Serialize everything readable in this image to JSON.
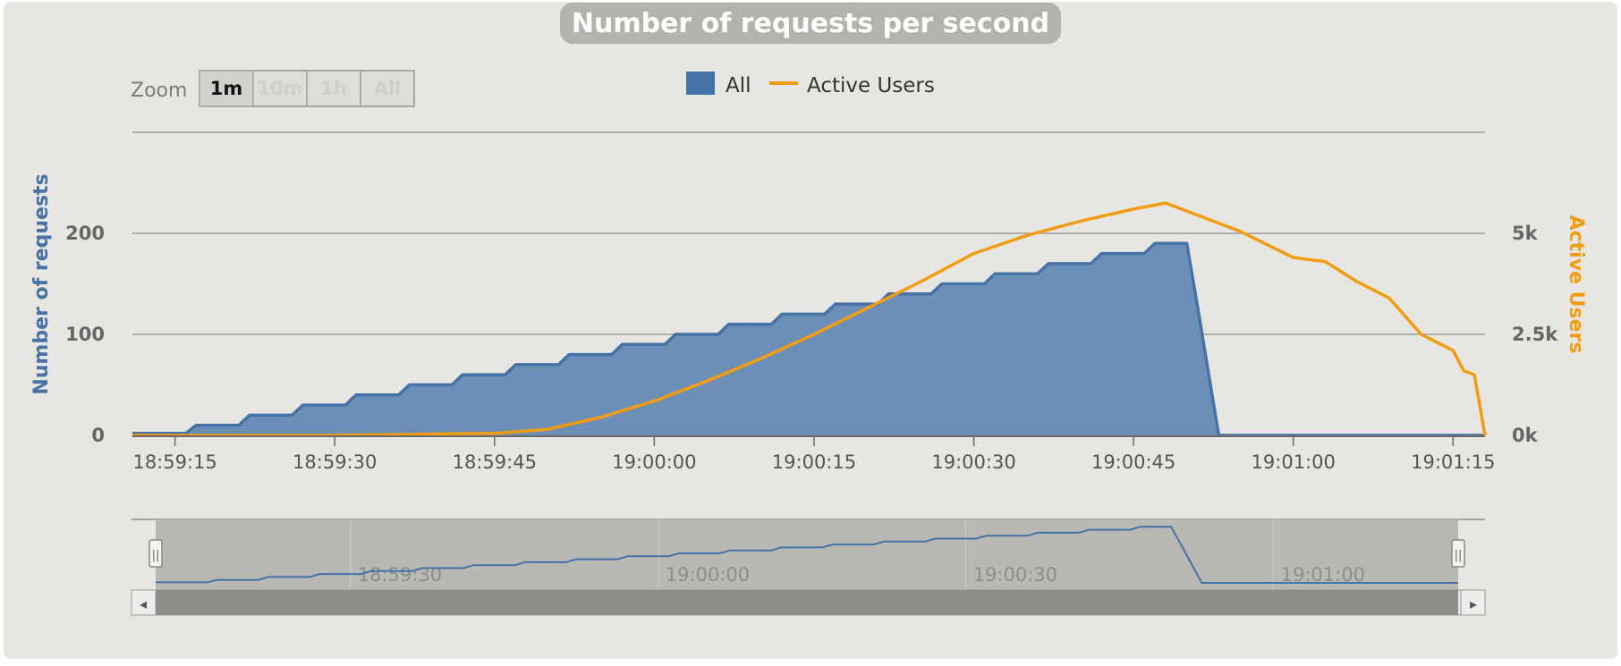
{
  "title": "Number of requests per second",
  "zoom": {
    "label": "Zoom",
    "buttons": [
      "1m",
      "10m",
      "1h",
      "All"
    ],
    "active": "1m"
  },
  "legend": {
    "items": [
      {
        "label": "All",
        "color": "#4572A7",
        "type": "area"
      },
      {
        "label": "Active Users",
        "color": "#FF9D00",
        "type": "line"
      }
    ]
  },
  "colors": {
    "panel": "#E7E6E2",
    "all_series": "#4572A7",
    "all_fill": "#6B8FB7",
    "active_users": "#F39C12",
    "navigator_mask": "#B9B8B3",
    "scrollbar": "#8E8D89"
  },
  "chart_data": {
    "type": "area",
    "title": "Number of requests per second",
    "x_start": "18:59:11",
    "x_step_seconds": 1,
    "x_end": "19:01:18",
    "x_ticks": [
      "18:59:15",
      "18:59:30",
      "18:59:45",
      "19:00:00",
      "19:00:15",
      "19:00:30",
      "19:00:45",
      "19:01:00",
      "19:01:15"
    ],
    "ylabel": "Number of requests",
    "y_ticks": [
      "0",
      "100",
      "200"
    ],
    "ylim": [
      0,
      300
    ],
    "y2label": "Active Users",
    "y2_ticks": [
      "0k",
      "2.5k",
      "5k"
    ],
    "y2lim": [
      0,
      7500
    ],
    "grid": true,
    "legend_position": "top-center",
    "series": [
      {
        "name": "All",
        "axis": "left",
        "type": "area",
        "values": [
          2,
          2,
          2,
          2,
          2,
          2,
          10,
          10,
          10,
          10,
          10,
          20,
          20,
          20,
          20,
          20,
          30,
          30,
          30,
          30,
          30,
          40,
          40,
          40,
          40,
          40,
          50,
          50,
          50,
          50,
          50,
          60,
          60,
          60,
          60,
          60,
          70,
          70,
          70,
          70,
          70,
          80,
          80,
          80,
          80,
          80,
          90,
          90,
          90,
          90,
          90,
          100,
          100,
          100,
          100,
          100,
          110,
          110,
          110,
          110,
          110,
          120,
          120,
          120,
          120,
          120,
          130,
          130,
          130,
          130,
          130,
          140,
          140,
          140,
          140,
          140,
          150,
          150,
          150,
          150,
          150,
          160,
          160,
          160,
          160,
          160,
          170,
          170,
          170,
          170,
          170,
          180,
          180,
          180,
          180,
          180,
          190,
          190,
          190,
          190,
          128,
          64,
          0,
          0,
          0,
          0,
          0,
          0,
          0,
          0,
          0,
          0,
          0,
          0,
          0,
          0,
          0,
          0,
          0,
          0,
          0,
          0,
          0,
          0,
          0,
          0,
          0,
          0
        ]
      },
      {
        "name": "Active Users",
        "axis": "right",
        "type": "line",
        "points": [
          [
            "18:59:11",
            0
          ],
          [
            "18:59:30",
            0
          ],
          [
            "18:59:45",
            50
          ],
          [
            "18:59:50",
            150
          ],
          [
            "18:59:55",
            450
          ],
          [
            "19:00:00",
            850
          ],
          [
            "19:00:05",
            1350
          ],
          [
            "19:00:10",
            1900
          ],
          [
            "19:00:15",
            2500
          ],
          [
            "19:00:20",
            3150
          ],
          [
            "19:00:25",
            3800
          ],
          [
            "19:00:30",
            4500
          ],
          [
            "19:00:35",
            4950
          ],
          [
            "19:00:40",
            5300
          ],
          [
            "19:00:45",
            5600
          ],
          [
            "19:00:48",
            5750
          ],
          [
            "19:00:50",
            5550
          ],
          [
            "19:00:55",
            5050
          ],
          [
            "19:01:00",
            4400
          ],
          [
            "19:01:03",
            4300
          ],
          [
            "19:01:06",
            3800
          ],
          [
            "19:01:09",
            3400
          ],
          [
            "19:01:12",
            2500
          ],
          [
            "19:01:15",
            2100
          ],
          [
            "19:01:16",
            1600
          ],
          [
            "19:01:17",
            1500
          ],
          [
            "19:01:18",
            0
          ]
        ]
      }
    ]
  },
  "navigator": {
    "tick_labels": [
      "18:59:30",
      "19:00:00",
      "19:00:30",
      "19:01:00"
    ],
    "scroll_left_arrow": "◂",
    "scroll_right_arrow": "▸",
    "handle_glyph": "||"
  }
}
